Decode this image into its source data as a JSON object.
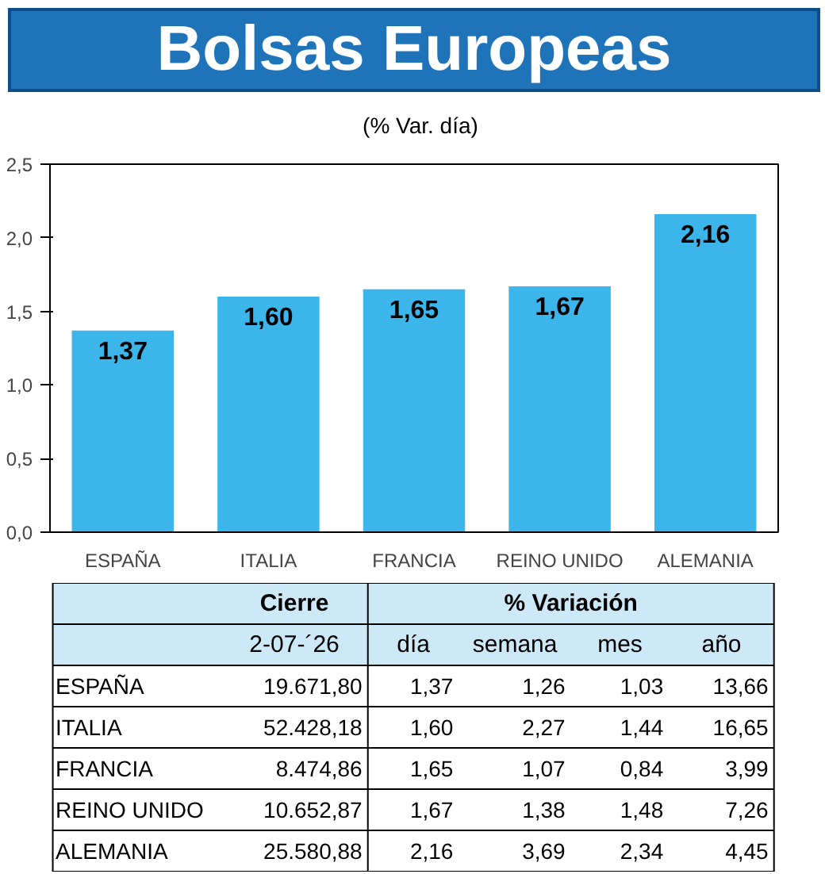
{
  "chart_data": [
    {
      "type": "bar",
      "title": "Bolsas Europeas",
      "subtitle": "(% Var. día)",
      "categories": [
        "ESPAÑA",
        "ITALIA",
        "FRANCIA",
        "REINO UNIDO",
        "ALEMANIA"
      ],
      "values": [
        1.37,
        1.6,
        1.65,
        1.67,
        2.16
      ],
      "value_labels": [
        "1,37",
        "1,60",
        "1,65",
        "1,67",
        "2,16"
      ],
      "color": "#3bb5ea",
      "ylim": [
        0,
        2.5
      ],
      "yticks": [
        {
          "value": 0,
          "label": "0,0"
        },
        {
          "value": 0.5,
          "label": "0,5"
        },
        {
          "value": 1,
          "label": "1,0"
        },
        {
          "value": 1.5,
          "label": "1,5"
        },
        {
          "value": 2,
          "label": "2,0"
        },
        {
          "value": 2.5,
          "label": "2,5"
        }
      ],
      "grid": false
    },
    {
      "type": "other",
      "annotations": [
        "Cierre",
        "% Variación"
      ],
      "categories": [
        "2-07-´26",
        "día",
        "semana",
        "mes",
        "año"
      ],
      "y_categories": [
        "ESPAÑA",
        "ITALIA",
        "FRANCIA",
        "REINO UNIDO",
        "ALEMANIA"
      ],
      "cell_labels": [
        [
          "19.671,80",
          "1,37",
          "1,26",
          "1,03",
          "13,66"
        ],
        [
          "52.428,18",
          "1,60",
          "2,27",
          "1,44",
          "16,65"
        ],
        [
          "8.474,86",
          "1,65",
          "1,07",
          "0,84",
          "3,99"
        ],
        [
          "10.652,87",
          "1,67",
          "1,38",
          "1,48",
          "7,26"
        ],
        [
          "25.580,88",
          "2,16",
          "3,69",
          "2,34",
          "4,45"
        ]
      ]
    }
  ]
}
